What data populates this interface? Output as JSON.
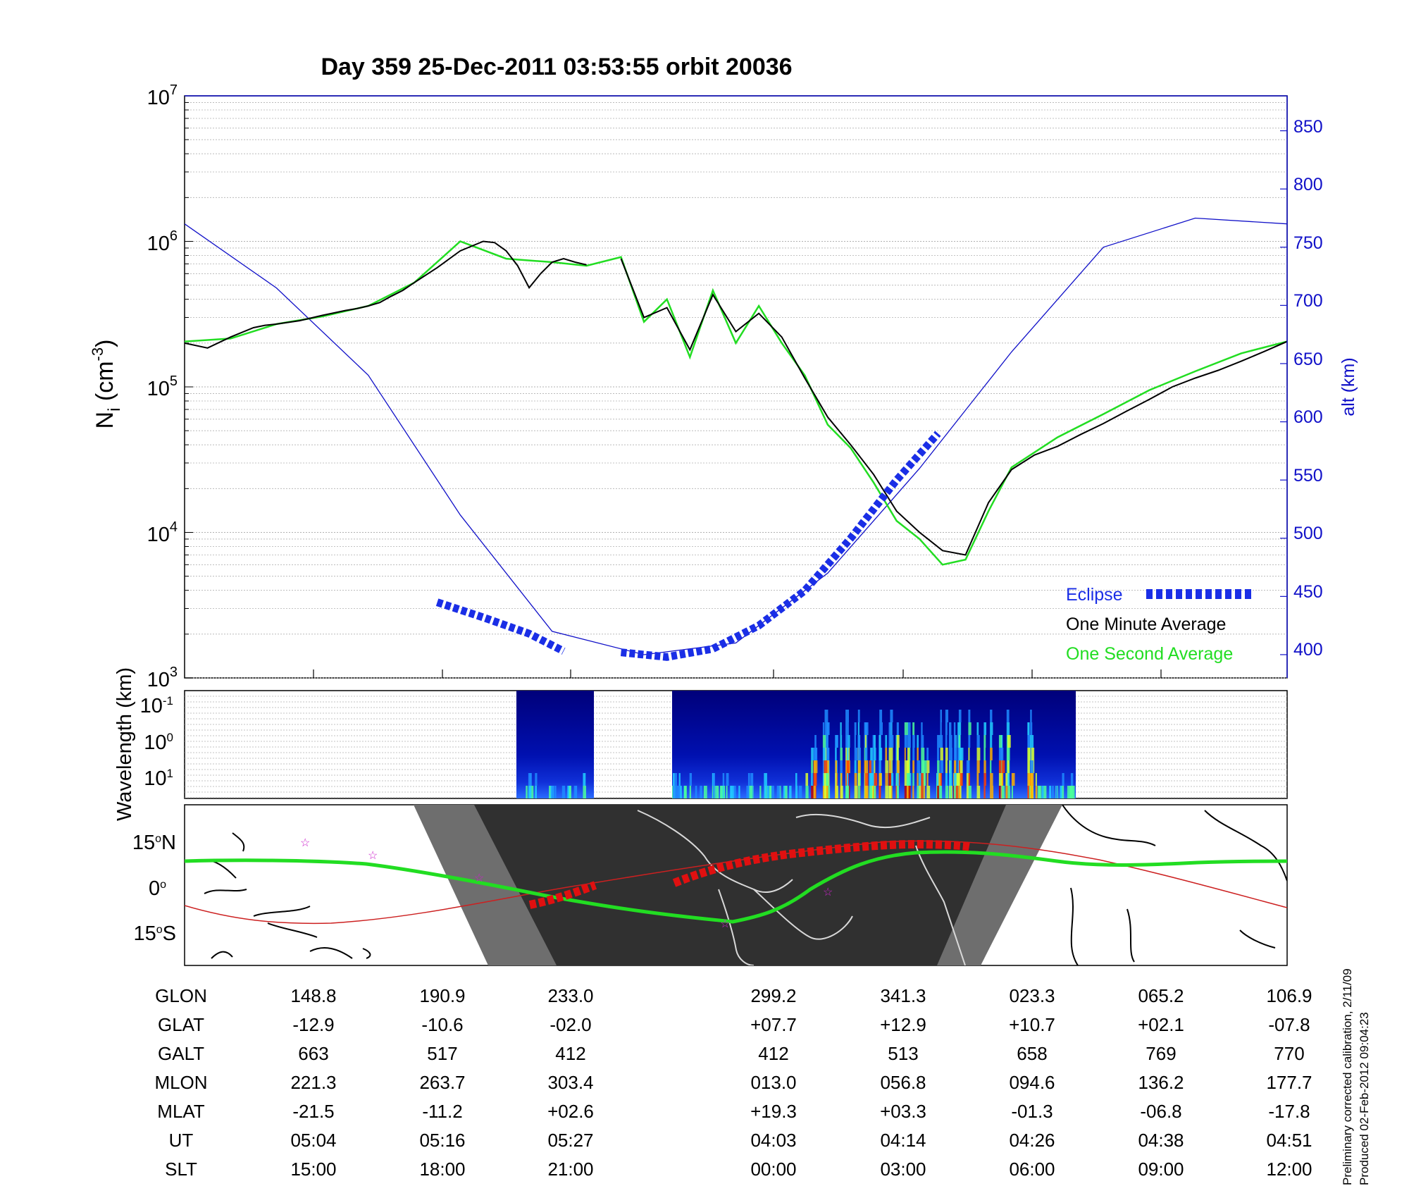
{
  "title": "Day 359  25-Dec-2011 03:53:55   orbit 20036",
  "ni_panel": {
    "ylabel_main": "N",
    "ylabel_sub": "i",
    "ylabel_unit_open": " (cm",
    "ylabel_unit_exp": "-3",
    "ylabel_unit_close": ")",
    "log_ticks": [
      {
        "base": "10",
        "exp": "7"
      },
      {
        "base": "10",
        "exp": "6"
      },
      {
        "base": "10",
        "exp": "5"
      },
      {
        "base": "10",
        "exp": "4"
      },
      {
        "base": "10",
        "exp": "3"
      }
    ],
    "right_label": "alt (km)",
    "right_ticks": [
      "850",
      "800",
      "750",
      "700",
      "650",
      "600",
      "550",
      "500",
      "450",
      "400"
    ],
    "legend": {
      "eclipse": "Eclipse",
      "one_minute": "One Minute Average",
      "one_second": "One Second Average"
    }
  },
  "wave_panel": {
    "ylabel": "Wavelength (km)",
    "ticks": [
      {
        "base": "10",
        "exp": "-1"
      },
      {
        "base": "10",
        "exp": "0"
      },
      {
        "base": "10",
        "exp": "1"
      }
    ]
  },
  "map_panel": {
    "ticks": [
      {
        "deg": "15",
        "ring": "o",
        "hem": "N"
      },
      {
        "deg": "0",
        "ring": "o",
        "hem": ""
      },
      {
        "deg": "15",
        "ring": "o",
        "hem": "S"
      }
    ]
  },
  "ephemeris": {
    "rows": [
      {
        "label": "GLON",
        "values": [
          "148.8",
          "190.9",
          "233.0",
          "299.2",
          "341.3",
          "023.3",
          "065.2",
          "106.9"
        ]
      },
      {
        "label": "GLAT",
        "values": [
          "-12.9",
          "-10.6",
          "-02.0",
          "+07.7",
          "+12.9",
          "+10.7",
          "+02.1",
          "-07.8"
        ]
      },
      {
        "label": "GALT",
        "values": [
          "663",
          "517",
          "412",
          "412",
          "513",
          "658",
          "769",
          "770"
        ]
      },
      {
        "label": "MLON",
        "values": [
          "221.3",
          "263.7",
          "303.4",
          "013.0",
          "056.8",
          "094.6",
          "136.2",
          "177.7"
        ]
      },
      {
        "label": "MLAT",
        "values": [
          "-21.5",
          "-11.2",
          "+02.6",
          "+19.3",
          "+03.3",
          "-01.3",
          "-06.8",
          "-17.8"
        ]
      },
      {
        "label": "UT",
        "values": [
          "05:04",
          "05:16",
          "05:27",
          "04:03",
          "04:14",
          "04:26",
          "04:38",
          "04:51"
        ]
      },
      {
        "label": "SLT",
        "values": [
          "15:00",
          "18:00",
          "21:00",
          "00:00",
          "03:00",
          "06:00",
          "09:00",
          "12:00"
        ]
      }
    ]
  },
  "notes": [
    "Preliminary corrected calibration, 2/11/09",
    "Produced 02-Feb-2012 09:04:23"
  ],
  "colors": {
    "altitude": "#1010c8",
    "eclipse": "#1a2ee6",
    "one_minute": "#000000",
    "one_second": "#22dd22",
    "orbit_track": "#22dd22",
    "eclipse_track": "#e01010",
    "magnetic_equator": "#cc2020",
    "night": "#303030",
    "twilight": "#6e6e6e"
  },
  "chart_data": {
    "type": "line",
    "title": "Day 359  25-Dec-2011 03:53:55   orbit 20036",
    "x_axis_slt": [
      "15:00",
      "18:00",
      "21:00",
      "00:00",
      "03:00",
      "06:00",
      "09:00",
      "12:00"
    ],
    "y_scale": "log",
    "ylim": [
      1000,
      10000000
    ],
    "y2lim": [
      380,
      880
    ],
    "y2label": "alt (km)",
    "series": [
      {
        "name": "One Minute Average",
        "x": [
          12,
          13,
          14,
          15,
          15.5,
          16,
          17,
          18,
          19,
          19.5,
          20,
          20.5,
          21,
          21.5,
          22,
          23,
          24,
          25,
          25.5,
          26,
          26.5,
          27,
          27.5,
          28,
          28.5,
          29,
          29.5,
          30,
          31,
          32,
          33,
          34,
          35,
          36,
          37,
          38,
          39,
          40,
          41,
          42,
          43,
          44,
          45,
          46,
          47,
          48,
          49,
          50,
          51,
          52,
          53,
          54,
          55,
          56,
          57,
          58,
          59,
          60
        ],
        "y": [
          200000,
          185000,
          220000,
          255000,
          265000,
          270000,
          285000,
          310000,
          335000,
          345000,
          360000,
          380000,
          420000,
          460000,
          520000,
          660000,
          860000,
          1000000,
          980000,
          860000,
          680000,
          480000,
          600000,
          720000,
          760000,
          720000,
          690000,
          null,
          760000,
          300000,
          350000,
          180000,
          430000,
          240000,
          320000,
          220000,
          115000,
          62000,
          40000,
          25000,
          14000,
          10000,
          7500,
          7000,
          16000,
          27000,
          34000,
          39000,
          47000,
          56000,
          68000,
          82000,
          100000,
          115000,
          130000,
          150000,
          175000,
          205000
        ]
      },
      {
        "name": "One Second Average",
        "x": [
          12,
          14,
          16,
          18,
          20,
          22,
          24,
          26,
          28,
          29.5,
          31,
          32,
          33,
          34,
          35,
          36,
          37,
          38,
          39,
          40,
          41,
          42,
          43,
          44,
          45,
          46,
          47,
          48,
          50,
          52,
          54,
          56,
          58,
          60
        ],
        "y": [
          205000,
          215000,
          270000,
          305000,
          360000,
          520000,
          1000000,
          760000,
          720000,
          680000,
          780000,
          280000,
          400000,
          160000,
          460000,
          200000,
          360000,
          200000,
          120000,
          55000,
          38000,
          22000,
          12000,
          9000,
          6000,
          6500,
          14000,
          28000,
          45000,
          65000,
          95000,
          128000,
          170000,
          205000
        ]
      },
      {
        "name": "alt (km)",
        "axis": "right",
        "x": [
          12,
          16,
          20,
          24,
          28,
          32,
          36,
          40,
          44,
          48,
          52,
          56,
          60
        ],
        "y": [
          770,
          715,
          640,
          520,
          420,
          400,
          410,
          470,
          560,
          660,
          750,
          775,
          770
        ]
      },
      {
        "name": "Eclipse",
        "axis": "right",
        "x": [
          23,
          25,
          27,
          28.5,
          31,
          33,
          35,
          37,
          39,
          41,
          43,
          44.8
        ],
        "y": [
          445,
          432,
          418,
          403,
          402,
          398,
          405,
          425,
          455,
          500,
          550,
          590
        ]
      }
    ]
  }
}
